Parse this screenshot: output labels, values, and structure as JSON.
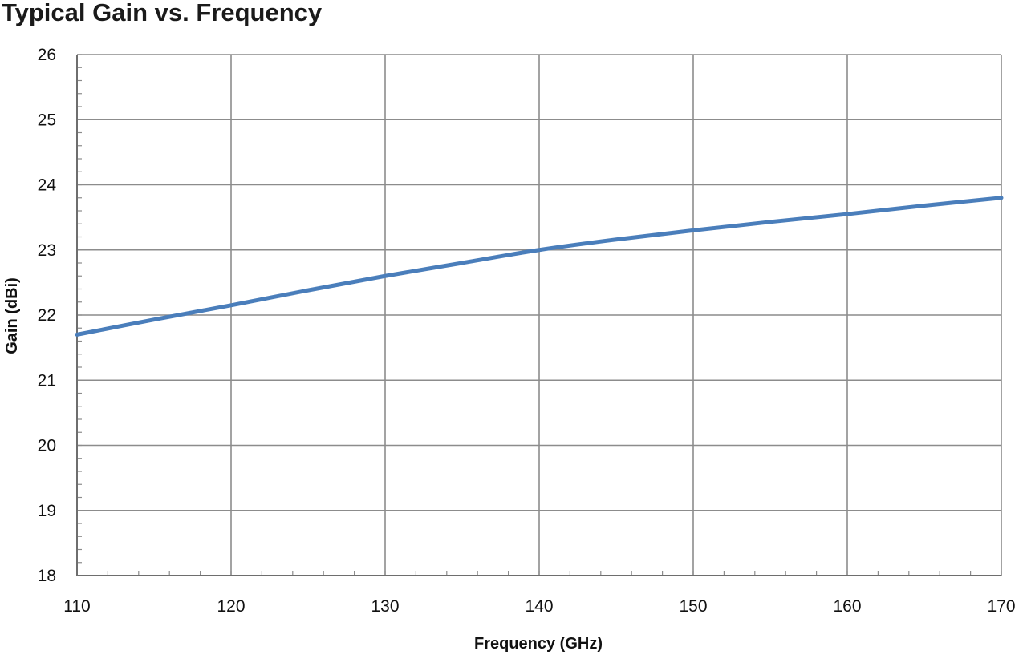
{
  "chart_data": {
    "type": "line",
    "title": "Typical Gain vs. Frequency",
    "xlabel": "Frequency (GHz)",
    "ylabel": "Gain (dBi)",
    "xlim": [
      110,
      170
    ],
    "ylim": [
      18,
      26
    ],
    "xticks": [
      110,
      120,
      130,
      140,
      150,
      160,
      170
    ],
    "yticks": [
      18,
      19,
      20,
      21,
      22,
      23,
      24,
      25,
      26
    ],
    "grid": true,
    "legend": "none",
    "series": [
      {
        "color": "#4a7ebb",
        "x": [
          110,
          115,
          120,
          125,
          130,
          135,
          140,
          145,
          150,
          155,
          160,
          165,
          170
        ],
        "y": [
          21.7,
          21.93,
          22.15,
          22.38,
          22.6,
          22.8,
          23.0,
          23.16,
          23.3,
          23.43,
          23.55,
          23.68,
          23.8
        ]
      }
    ]
  }
}
